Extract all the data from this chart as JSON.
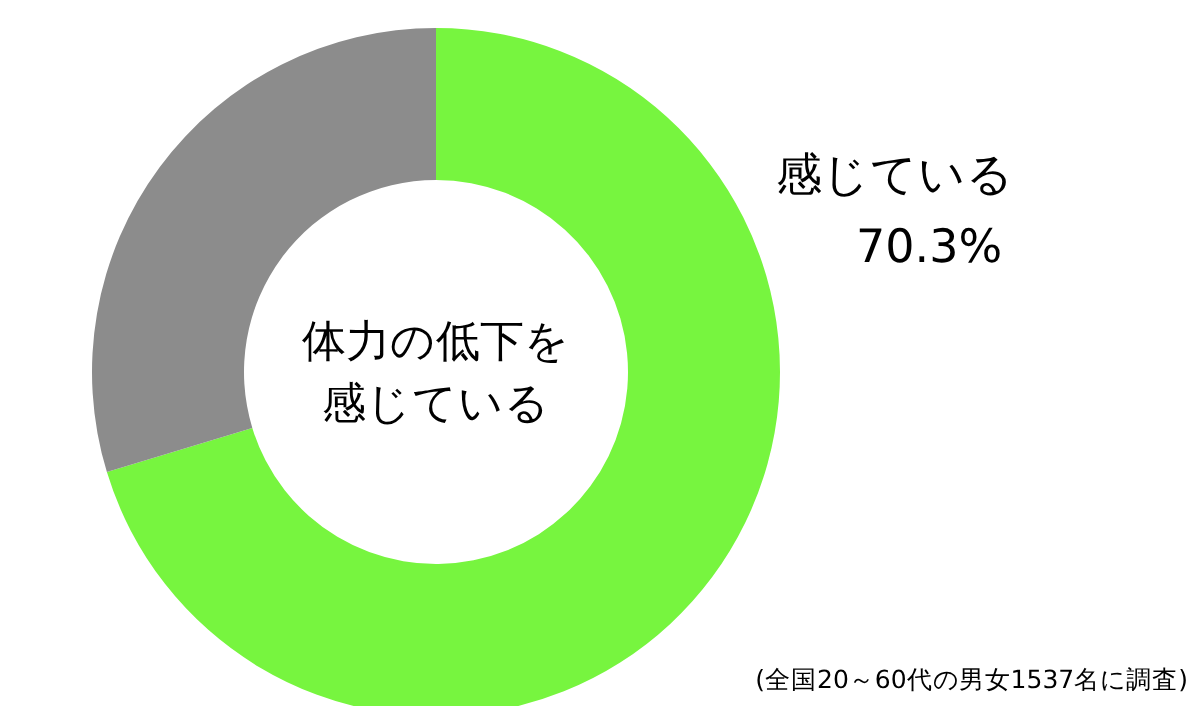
{
  "chart_data": {
    "type": "donut",
    "title": "体力の低下を感じている",
    "categories": [
      "感じている",
      null
    ],
    "values": [
      70.3,
      29.7
    ],
    "colors": [
      "#77f53f",
      "#8c8c8c"
    ],
    "value_labels": [
      "70.3%",
      null
    ],
    "annotations": [
      "(全国20～60代の男女1537名に調査)"
    ]
  }
}
